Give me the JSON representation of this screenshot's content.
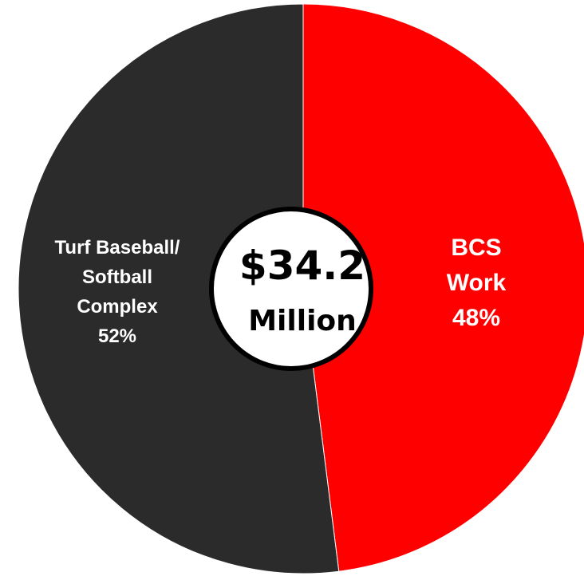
{
  "chart_data": {
    "type": "pie",
    "center_label": {
      "value": "$34.2",
      "unit": "Million"
    },
    "slices": [
      {
        "label_lines": [
          "BCS",
          "Work"
        ],
        "percent_label": "48%",
        "value": 48,
        "color": "#ff0000",
        "label_color": "#ffffff"
      },
      {
        "label_lines": [
          "Turf Baseball/",
          "Softball",
          "Complex"
        ],
        "percent_label": "52%",
        "value": 52,
        "color": "#2b2b2b",
        "label_color": "#ffffff"
      }
    ]
  }
}
